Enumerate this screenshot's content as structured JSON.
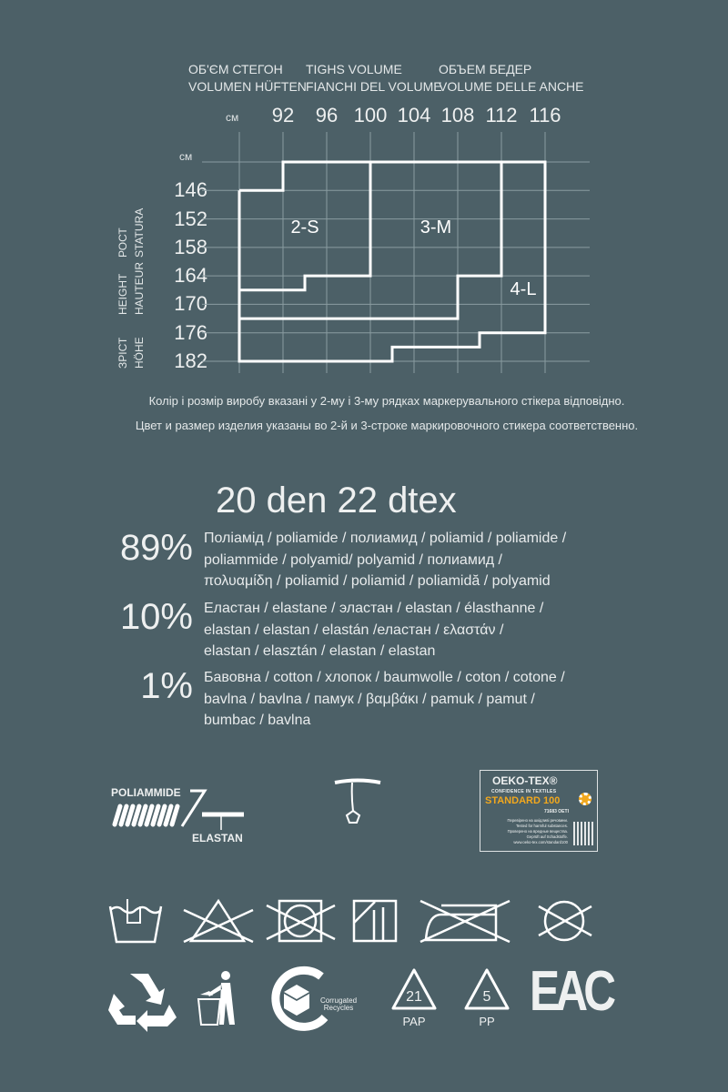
{
  "header": {
    "col1": [
      "ОБ'ЄМ СТЕГОН",
      "VOLUMEN HÜFTEN"
    ],
    "col2": [
      "TIGHS VOLUME",
      "FIANCHI DEL VOLUME"
    ],
    "col3": [
      "ОБЪЕМ БЕДЕР",
      "VOLUME DELLE ANCHE"
    ]
  },
  "chart_data": {
    "type": "table",
    "x_unit": "см",
    "y_unit": "см",
    "hip_values": [
      "92",
      "96",
      "100",
      "104",
      "108",
      "112",
      "116"
    ],
    "height_values": [
      "146",
      "152",
      "158",
      "164",
      "170",
      "176",
      "182"
    ],
    "y_axis_labels": [
      [
        "РОСТ",
        "STATURA"
      ],
      [
        "HEIGHT",
        "HAUTEUR"
      ],
      [
        "ЗРІСТ",
        "HÖHE"
      ]
    ],
    "grid": true,
    "sizes": [
      {
        "name": "2-S",
        "outline": [
          [
            88,
            146
          ],
          [
            92,
            146
          ],
          [
            92,
            140
          ],
          [
            100,
            140
          ],
          [
            100,
            164
          ],
          [
            94,
            164
          ],
          [
            94,
            167
          ],
          [
            88,
            167
          ]
        ]
      },
      {
        "name": "3-M",
        "outline": [
          [
            100,
            140
          ],
          [
            112,
            140
          ],
          [
            112,
            164
          ],
          [
            108,
            164
          ],
          [
            108,
            173
          ],
          [
            88,
            173
          ]
        ]
      },
      {
        "name": "4-L",
        "outline": [
          [
            112,
            140
          ],
          [
            116,
            140
          ],
          [
            116,
            176
          ],
          [
            110,
            176
          ],
          [
            110,
            179
          ],
          [
            102,
            179
          ],
          [
            102,
            182
          ],
          [
            88,
            182
          ],
          [
            88,
            146
          ]
        ]
      }
    ]
  },
  "notes": [
    "Колір і розмір виробу вказані у 2-му і 3-му рядках маркерувального стікера відповідно.",
    "Цвет и размер изделия указаны во 2-й и 3-строке маркировочного стикера соответственно."
  ],
  "density": "20 den  22 dtex",
  "composition": [
    {
      "percent": "89%",
      "lines": [
        "Поліамід / poliamide / полиамид / poliamid / poliamide /",
        "poliammide / polyamid/ polyamid / полиамид /",
        "πολυαμίδη / poliamid / poliamid / poliamidă / polyamid"
      ]
    },
    {
      "percent": "10%",
      "lines": [
        "Еластан / elastane / эластан / elastan / élasthanne /",
        "elastan / elastan / elastán /еластан / ελαστάν /",
        "elastan / elasztán / elastan / elastan"
      ]
    },
    {
      "percent": "1%",
      "lines": [
        "Бавовна / cotton / хлопок / baumwolle / coton / cotone /",
        "bavlna / bavlna / памук / βαμβάκι / pamuk / pamut /",
        "bumbac / bavlna"
      ]
    }
  ],
  "fiber_diagram": {
    "top": "POLIAMMIDE",
    "bottom": "ELASTAN"
  },
  "oekotex": {
    "brand": "OEKO-TEX®",
    "tagline": "CONFIDENCE IN TEXTILES",
    "standard": "STANDARD 100",
    "code": "71683 OETI",
    "text": [
      "Перевірено на шкідливі речовини.",
      "Tested for harmful substances.",
      "Проверено на вредные вещества.",
      "Geprüft auf Schadstoffe.",
      "www.oeko-tex.com/standard100"
    ],
    "accent": "#f2a81d"
  },
  "care_icons": [
    "hand-wash-icon",
    "do-not-bleach-icon",
    "do-not-tumble-dry-icon",
    "drip-dry-in-shade-icon",
    "do-not-iron-icon",
    "do-not-dry-clean-icon"
  ],
  "eco": {
    "corrugated": [
      "Corrugated",
      "Recycles"
    ],
    "pap_code": "21",
    "pap_label": "PAP",
    "pp_code": "5",
    "pp_label": "PP",
    "eac": "EAC"
  },
  "colors": {
    "background": "#4c6067",
    "foreground": "#ffffff"
  }
}
